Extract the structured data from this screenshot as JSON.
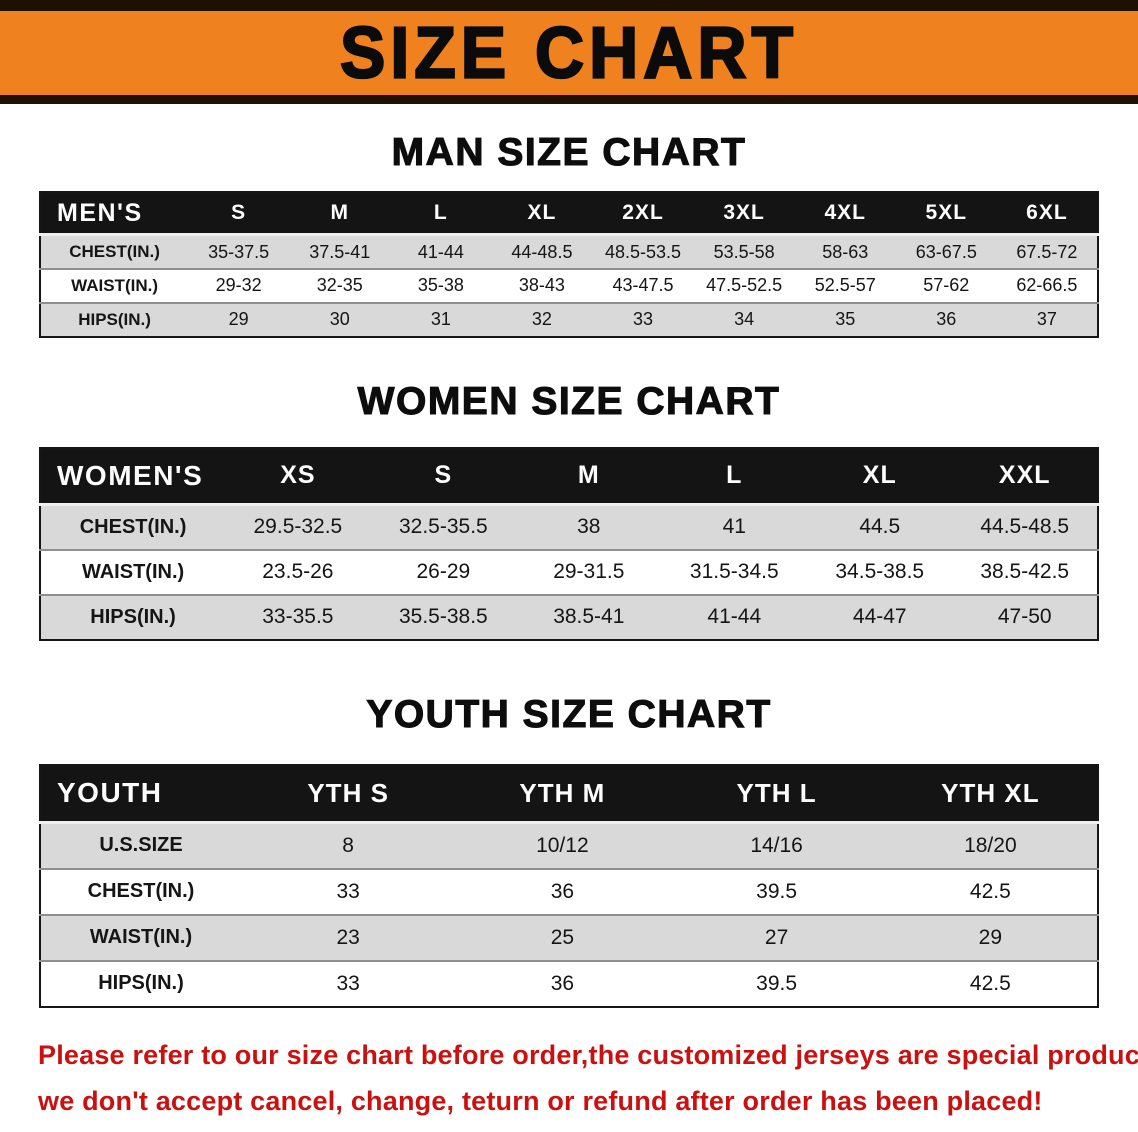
{
  "banner": {
    "title": "SIZE CHART"
  },
  "sections": {
    "man": {
      "heading": "MAN SIZE CHART",
      "table": {
        "header": [
          "MEN'S",
          "S",
          "M",
          "L",
          "XL",
          "2XL",
          "3XL",
          "4XL",
          "5XL",
          "6XL"
        ],
        "rows": [
          [
            "CHEST(IN.)",
            "35-37.5",
            "37.5-41",
            "41-44",
            "44-48.5",
            "48.5-53.5",
            "53.5-58",
            "58-63",
            "63-67.5",
            "67.5-72"
          ],
          [
            "WAIST(IN.)",
            "29-32",
            "32-35",
            "35-38",
            "38-43",
            "43-47.5",
            "47.5-52.5",
            "52.5-57",
            "57-62",
            "62-66.5"
          ],
          [
            "HIPS(IN.)",
            "29",
            "30",
            "31",
            "32",
            "33",
            "34",
            "35",
            "36",
            "37"
          ]
        ]
      }
    },
    "women": {
      "heading": "WOMEN SIZE CHART",
      "table": {
        "header": [
          "WOMEN'S",
          "XS",
          "S",
          "M",
          "L",
          "XL",
          "XXL"
        ],
        "rows": [
          [
            "CHEST(IN.)",
            "29.5-32.5",
            "32.5-35.5",
            "38",
            "41",
            "44.5",
            "44.5-48.5"
          ],
          [
            "WAIST(IN.)",
            "23.5-26",
            "26-29",
            "29-31.5",
            "31.5-34.5",
            "34.5-38.5",
            "38.5-42.5"
          ],
          [
            "HIPS(IN.)",
            "33-35.5",
            "35.5-38.5",
            "38.5-41",
            "41-44",
            "44-47",
            "47-50"
          ]
        ]
      }
    },
    "youth": {
      "heading": "YOUTH SIZE CHART",
      "table": {
        "header": [
          "YOUTH",
          "YTH S",
          "YTH M",
          "YTH L",
          "YTH XL"
        ],
        "rows": [
          [
            "U.S.SIZE",
            "8",
            "10/12",
            "14/16",
            "18/20"
          ],
          [
            "CHEST(IN.)",
            "33",
            "36",
            "39.5",
            "42.5"
          ],
          [
            "WAIST(IN.)",
            "23",
            "25",
            "27",
            "29"
          ],
          [
            "HIPS(IN.)",
            "33",
            "36",
            "39.5",
            "42.5"
          ]
        ]
      }
    }
  },
  "disclaimer": {
    "line1": "Please refer to our size chart before order,the customized jerseys are special products,",
    "line2": "we don't accept cancel, change, teturn or refund after order has been placed!"
  },
  "colors": {
    "banner_orange": "#f0811f",
    "banner_border": "#1e1002",
    "header_black": "#141414",
    "row_gray": "#d9d9d9",
    "disclaimer_red": "#cb1010"
  }
}
